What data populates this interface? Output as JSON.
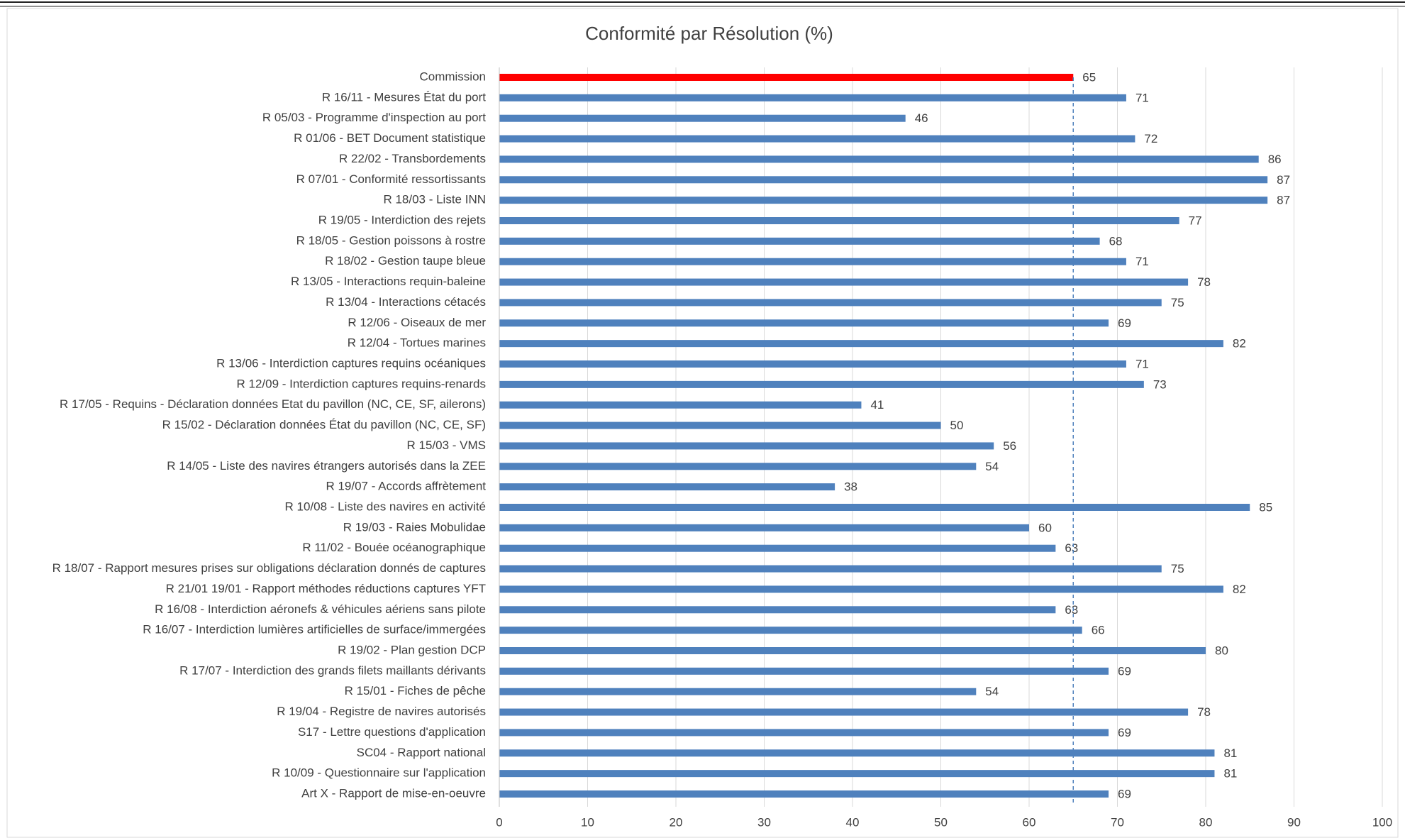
{
  "chart_data": {
    "type": "barh",
    "title": "Conformité par Résolution (%)",
    "categories": [
      "Commission",
      "R 16/11 - Mesures État du port",
      "R 05/03 - Programme d'inspection au port",
      "R 01/06 - BET Document statistique",
      "R 22/02 - Transbordements",
      "R 07/01 - Conformité ressortissants",
      "R 18/03 - Liste INN",
      "R 19/05 - Interdiction des rejets",
      "R 18/05 - Gestion poissons à rostre",
      "R 18/02 - Gestion taupe bleue",
      "R 13/05 - Interactions requin-baleine",
      "R 13/04 - Interactions cétacés",
      "R 12/06 - Oiseaux de mer",
      "R 12/04 - Tortues marines",
      "R 13/06 - Interdiction captures requins océaniques",
      "R 12/09 - Interdiction captures requins-renards",
      "R 17/05 - Requins - Déclaration données Etat du pavillon (NC, CE, SF, ailerons)",
      "R 15/02 - Déclaration données État du pavillon (NC, CE, SF)",
      "R 15/03 - VMS",
      "R 14/05 - Liste des navires étrangers autorisés dans la ZEE",
      "R 19/07 - Accords affrètement",
      "R 10/08 - Liste des navires en activité",
      "R 19/03 - Raies Mobulidae",
      "R 11/02 - Bouée océanographique",
      "R 18/07 - Rapport mesures prises sur obligations déclaration donnés de captures",
      "R 21/01 19/01 - Rapport méthodes réductions captures YFT",
      "R 16/08 - Interdiction aéronefs & véhicules aériens sans pilote",
      "R 16/07 - Interdiction lumières artificielles de surface/immergées",
      "R 19/02 - Plan gestion DCP",
      "R 17/07 - Interdiction des grands filets maillants dérivants",
      "R 15/01 - Fiches de pêche",
      "R 19/04 - Registre de navires autorisés",
      "S17 - Lettre questions d'application",
      "SC04 - Rapport national",
      "R 10/09 - Questionnaire sur l'application",
      "Art X - Rapport de mise-en-oeuvre"
    ],
    "values": [
      65,
      71,
      46,
      72,
      86,
      87,
      87,
      77,
      68,
      71,
      78,
      75,
      69,
      82,
      71,
      73,
      41,
      50,
      56,
      54,
      38,
      85,
      60,
      63,
      75,
      82,
      63,
      66,
      80,
      69,
      54,
      78,
      69,
      81,
      81,
      69
    ],
    "colors": [
      "#ff0000",
      "#4f81bd",
      "#4f81bd",
      "#4f81bd",
      "#4f81bd",
      "#4f81bd",
      "#4f81bd",
      "#4f81bd",
      "#4f81bd",
      "#4f81bd",
      "#4f81bd",
      "#4f81bd",
      "#4f81bd",
      "#4f81bd",
      "#4f81bd",
      "#4f81bd",
      "#4f81bd",
      "#4f81bd",
      "#4f81bd",
      "#4f81bd",
      "#4f81bd",
      "#4f81bd",
      "#4f81bd",
      "#4f81bd",
      "#4f81bd",
      "#4f81bd",
      "#4f81bd",
      "#4f81bd",
      "#4f81bd",
      "#4f81bd",
      "#4f81bd",
      "#4f81bd",
      "#4f81bd",
      "#4f81bd",
      "#4f81bd",
      "#4f81bd"
    ],
    "reference_line_color": "#4f81bd",
    "xlim": [
      0,
      100
    ],
    "xticks": [
      0,
      10,
      20,
      30,
      40,
      50,
      60,
      70,
      80,
      90,
      100
    ],
    "grid": true
  }
}
